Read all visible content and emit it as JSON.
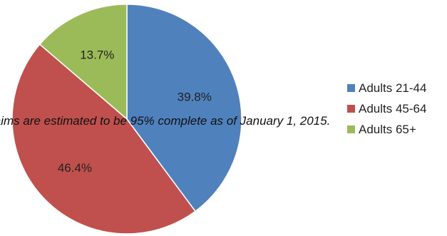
{
  "chart_data": {
    "type": "pie",
    "title": "",
    "slices": [
      {
        "label": "Adults 21-44",
        "value": 39.8,
        "value_label": "39.8%",
        "color": "#4F81BD"
      },
      {
        "label": "Adults 45-64",
        "value": 46.4,
        "value_label": "46.4%",
        "color": "#C0504D"
      },
      {
        "label": "Adults 65+",
        "value": 13.7,
        "value_label": "13.7%",
        "color": "#9BBB59"
      }
    ],
    "start_angle": "12 o'clock",
    "direction": "clockwise",
    "legend": {
      "position": "right"
    },
    "annotation": "laims are estimated to be 95% complete as of January 1, 2015."
  }
}
